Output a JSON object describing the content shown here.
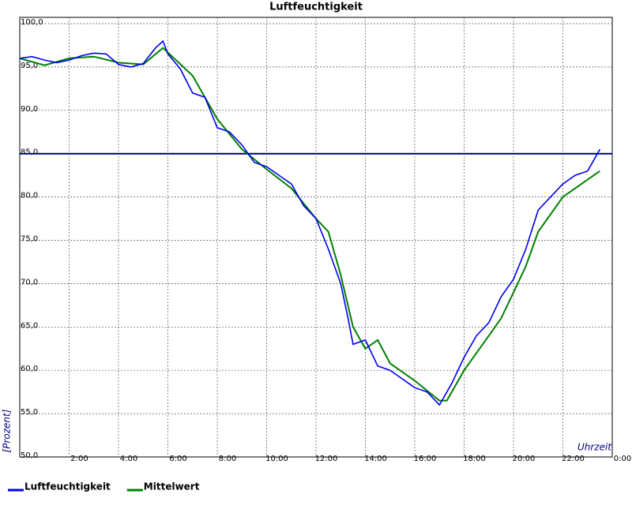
{
  "chart_data": {
    "type": "line",
    "title": "Luftfeuchtigkeit",
    "ylabel": "[Prozent]",
    "xlabel": "Uhrzeit",
    "xlim": [
      0,
      24
    ],
    "ylim": [
      50,
      100
    ],
    "xticks": [
      {
        "value": 2,
        "label": "2:00"
      },
      {
        "value": 4,
        "label": "4:00"
      },
      {
        "value": 6,
        "label": "6:00"
      },
      {
        "value": 8,
        "label": "8:00"
      },
      {
        "value": 10,
        "label": "10:00"
      },
      {
        "value": 12,
        "label": "12:00"
      },
      {
        "value": 14,
        "label": "14:00"
      },
      {
        "value": 16,
        "label": "16:00"
      },
      {
        "value": 18,
        "label": "18:00"
      },
      {
        "value": 20,
        "label": "20:00"
      },
      {
        "value": 22,
        "label": "22:00"
      },
      {
        "value": 24,
        "label": "0:00"
      }
    ],
    "yticks": [
      {
        "value": 50,
        "label": "50,0"
      },
      {
        "value": 55,
        "label": "55,0"
      },
      {
        "value": 60,
        "label": "60,0"
      },
      {
        "value": 65,
        "label": "65,0"
      },
      {
        "value": 70,
        "label": "70,0"
      },
      {
        "value": 75,
        "label": "75,0"
      },
      {
        "value": 80,
        "label": "80,0"
      },
      {
        "value": 85,
        "label": "85,0"
      },
      {
        "value": 90,
        "label": "90,0"
      },
      {
        "value": 95,
        "label": "95,0"
      },
      {
        "value": 100,
        "label": "100,0"
      }
    ],
    "grid": true,
    "reference_line": 85,
    "reference_color": "#000080",
    "series": [
      {
        "name": "Luftfeuchtigkeit",
        "color": "#0000ee",
        "x": [
          0,
          0.5,
          1,
          1.5,
          2,
          2.5,
          3,
          3.5,
          4,
          4.5,
          5,
          5.5,
          5.8,
          6,
          6.5,
          7,
          7.5,
          8,
          8.5,
          9,
          9.5,
          10,
          10.5,
          11,
          11.5,
          12,
          12.5,
          13,
          13.3,
          13.5,
          14,
          14.5,
          15,
          15.5,
          16,
          16.5,
          17,
          17.5,
          18,
          18.5,
          19,
          19.5,
          20,
          20.5,
          21,
          21.5,
          22,
          22.5,
          23,
          23.5
        ],
        "values": [
          96.0,
          96.2,
          95.8,
          95.5,
          95.8,
          96.3,
          96.6,
          96.5,
          95.3,
          95.0,
          95.4,
          97.2,
          98.0,
          96.5,
          94.8,
          92.0,
          91.5,
          88.0,
          87.5,
          86.0,
          84.0,
          83.5,
          82.5,
          81.5,
          79.0,
          77.5,
          74.0,
          70.0,
          66.0,
          63.0,
          63.5,
          60.5,
          60.0,
          59.0,
          58.0,
          57.5,
          56.0,
          58.5,
          61.5,
          64.0,
          65.5,
          68.5,
          70.5,
          74.0,
          78.5,
          80.0,
          81.5,
          82.5,
          83.0,
          85.5
        ]
      },
      {
        "name": "Mittelwert",
        "color": "#008000",
        "x": [
          0,
          1,
          2,
          3,
          4,
          5,
          5.8,
          7,
          8,
          9,
          10,
          11,
          12,
          12.5,
          13,
          13.5,
          14,
          14.5,
          15,
          16,
          17,
          17.3,
          18,
          19,
          19.5,
          20,
          20.5,
          21,
          22,
          23,
          23.5
        ],
        "values": [
          96.0,
          95.2,
          96.0,
          96.2,
          95.5,
          95.3,
          97.2,
          94.0,
          89.0,
          85.5,
          83.2,
          81.0,
          77.5,
          76.0,
          71.0,
          65.0,
          62.5,
          63.5,
          60.8,
          58.8,
          56.5,
          56.5,
          60.0,
          64.0,
          66.0,
          69.0,
          72.0,
          76.0,
          80.0,
          82.0,
          83.0
        ]
      }
    ]
  }
}
